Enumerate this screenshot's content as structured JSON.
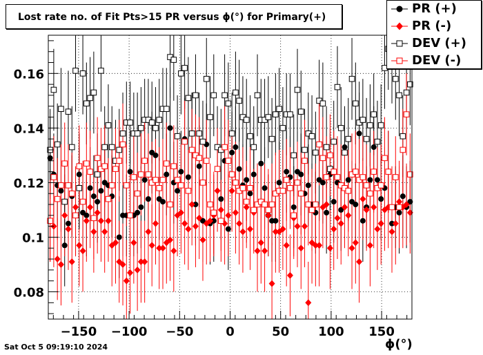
{
  "chart_data": {
    "type": "scatter",
    "title": "Lost rate no. of Fit Pts>15 PR versus ϕ(°) for Primary(+)",
    "xlabel": "ϕ(°)",
    "ylabel": "",
    "xlim": [
      -180,
      180
    ],
    "ylim": [
      0.07,
      0.174
    ],
    "grid": true,
    "legend_position": "top-right",
    "x_ticks": [
      "−150",
      "−100",
      "−50",
      "0",
      "50",
      "100",
      "150"
    ],
    "x_tick_values": [
      -150,
      -100,
      -50,
      0,
      50,
      100,
      150
    ],
    "y_ticks": [
      "0.08",
      "0.1",
      "0.12",
      "0.14",
      "0.16"
    ],
    "y_tick_values": [
      0.08,
      0.1,
      0.12,
      0.14,
      0.16
    ],
    "x": [
      -178.2,
      -174.6,
      -171.0,
      -167.4,
      -163.8,
      -160.2,
      -156.6,
      -153.0,
      -149.4,
      -145.8,
      -142.2,
      -138.6,
      -135.0,
      -131.4,
      -127.8,
      -124.2,
      -120.6,
      -117.0,
      -113.4,
      -109.8,
      -106.2,
      -102.6,
      -99.0,
      -95.4,
      -91.8,
      -88.2,
      -84.6,
      -81.0,
      -77.4,
      -73.8,
      -70.2,
      -66.6,
      -63.0,
      -59.4,
      -55.8,
      -52.2,
      -48.6,
      -45.0,
      -41.4,
      -37.8,
      -34.2,
      -30.6,
      -27.0,
      -23.4,
      -19.8,
      -16.2,
      -12.6,
      -9.0,
      -5.4,
      -1.8,
      1.8,
      5.4,
      9.0,
      12.6,
      16.2,
      19.8,
      23.4,
      27.0,
      30.6,
      34.2,
      37.8,
      41.4,
      45.0,
      48.6,
      52.2,
      55.8,
      59.4,
      63.0,
      66.6,
      70.2,
      73.8,
      77.4,
      81.0,
      84.6,
      88.2,
      91.8,
      95.4,
      99.0,
      102.6,
      106.2,
      109.8,
      113.4,
      117.0,
      120.6,
      124.2,
      127.8,
      131.4,
      135.0,
      138.6,
      142.2,
      145.8,
      149.4,
      153.0,
      156.6,
      160.2,
      163.8,
      167.4,
      171.0,
      174.6,
      178.2
    ],
    "series": [
      {
        "name": "PR (+)",
        "marker": "filled-circle",
        "color": "#000000",
        "values": [
          0.129,
          0.123,
          0.119,
          0.117,
          0.097,
          0.105,
          0.115,
          0.108,
          0.123,
          0.109,
          0.108,
          0.118,
          0.115,
          0.113,
          0.117,
          0.12,
          0.119,
          0.115,
          0.128,
          0.1,
          0.108,
          0.108,
          0.124,
          0.108,
          0.109,
          0.111,
          0.121,
          0.114,
          0.131,
          0.13,
          0.114,
          0.113,
          0.123,
          0.14,
          0.12,
          0.117,
          0.124,
          0.136,
          0.122,
          0.138,
          0.112,
          0.126,
          0.106,
          0.134,
          0.105,
          0.106,
          0.125,
          0.114,
          0.128,
          0.103,
          0.131,
          0.133,
          0.125,
          0.119,
          0.121,
          0.116,
          0.123,
          0.112,
          0.127,
          0.118,
          0.108,
          0.106,
          0.106,
          0.12,
          0.117,
          0.124,
          0.122,
          0.111,
          0.124,
          0.123,
          0.116,
          0.119,
          0.112,
          0.109,
          0.121,
          0.12,
          0.109,
          0.123,
          0.113,
          0.12,
          0.11,
          0.133,
          0.121,
          0.113,
          0.112,
          0.138,
          0.106,
          0.111,
          0.121,
          0.133,
          0.121,
          0.114,
          0.118,
          0.124,
          0.105,
          0.111,
          0.109,
          0.115,
          0.111,
          0.113
        ]
      },
      {
        "name": "PR (-)",
        "marker": "filled-diamond",
        "color": "#ff0000",
        "values": [
          0.106,
          0.104,
          0.092,
          0.09,
          0.108,
          0.103,
          0.091,
          0.111,
          0.097,
          0.095,
          0.106,
          0.111,
          0.102,
          0.109,
          0.106,
          0.102,
          0.106,
          0.097,
          0.098,
          0.091,
          0.09,
          0.084,
          0.087,
          0.098,
          0.088,
          0.091,
          0.091,
          0.102,
          0.097,
          0.105,
          0.096,
          0.096,
          0.098,
          0.099,
          0.095,
          0.108,
          0.109,
          0.105,
          0.103,
          0.112,
          0.104,
          0.107,
          0.099,
          0.105,
          0.106,
          0.108,
          0.117,
          0.11,
          0.105,
          0.108,
          0.117,
          0.109,
          0.105,
          0.102,
          0.111,
          0.103,
          0.109,
          0.095,
          0.098,
          0.095,
          0.108,
          0.083,
          0.102,
          0.102,
          0.103,
          0.097,
          0.086,
          0.107,
          0.104,
          0.096,
          0.104,
          0.076,
          0.098,
          0.097,
          0.097,
          0.111,
          0.112,
          0.096,
          0.103,
          0.107,
          0.105,
          0.111,
          0.108,
          0.096,
          0.098,
          0.091,
          0.114,
          0.11,
          0.097,
          0.111,
          0.103,
          0.105,
          0.11,
          0.111,
          0.102,
          0.105,
          0.113,
          0.111,
          0.112,
          0.109
        ]
      },
      {
        "name": "DEV (+)",
        "marker": "open-square",
        "color": "#000000",
        "values": [
          0.132,
          0.154,
          0.134,
          0.147,
          0.113,
          0.146,
          0.133,
          0.161,
          0.118,
          0.16,
          0.149,
          0.151,
          0.153,
          0.123,
          0.161,
          0.133,
          0.141,
          0.133,
          0.128,
          0.132,
          0.138,
          0.142,
          0.142,
          0.138,
          0.138,
          0.14,
          0.143,
          0.143,
          0.142,
          0.14,
          0.143,
          0.147,
          0.147,
          0.166,
          0.165,
          0.137,
          0.16,
          0.162,
          0.151,
          0.138,
          0.152,
          0.138,
          0.135,
          0.158,
          0.144,
          0.152,
          0.133,
          0.132,
          0.152,
          0.149,
          0.138,
          0.153,
          0.15,
          0.144,
          0.143,
          0.137,
          0.133,
          0.152,
          0.143,
          0.143,
          0.144,
          0.136,
          0.145,
          0.147,
          0.14,
          0.145,
          0.145,
          0.13,
          0.154,
          0.146,
          0.132,
          0.138,
          0.137,
          0.131,
          0.15,
          0.149,
          0.133,
          0.125,
          0.135,
          0.155,
          0.14,
          0.131,
          0.136,
          0.158,
          0.149,
          0.142,
          0.143,
          0.136,
          0.141,
          0.145,
          0.135,
          0.141,
          0.162,
          0.169,
          0.164,
          0.158,
          0.152,
          0.137,
          0.153,
          0.156
        ]
      },
      {
        "name": "DEV (-)",
        "marker": "open-square",
        "color": "#ff0000",
        "values": [
          0.106,
          0.122,
          0.114,
          0.119,
          0.127,
          0.119,
          0.116,
          0.108,
          0.126,
          0.113,
          0.127,
          0.124,
          0.107,
          0.129,
          0.125,
          0.126,
          0.114,
          0.119,
          0.125,
          0.128,
          0.134,
          0.119,
          0.108,
          0.122,
          0.116,
          0.123,
          0.128,
          0.123,
          0.12,
          0.121,
          0.118,
          0.121,
          0.127,
          0.112,
          0.126,
          0.121,
          0.119,
          0.135,
          0.117,
          0.132,
          0.13,
          0.129,
          0.12,
          0.128,
          0.112,
          0.109,
          0.125,
          0.106,
          0.133,
          0.128,
          0.123,
          0.12,
          0.117,
          0.118,
          0.113,
          0.118,
          0.11,
          0.112,
          0.113,
          0.112,
          0.11,
          0.112,
          0.116,
          0.117,
          0.117,
          0.121,
          0.118,
          0.108,
          0.12,
          0.116,
          0.128,
          0.112,
          0.11,
          0.112,
          0.134,
          0.129,
          0.122,
          0.13,
          0.124,
          0.122,
          0.119,
          0.118,
          0.117,
          0.123,
          0.124,
          0.121,
          0.122,
          0.119,
          0.116,
          0.124,
          0.118,
          0.119,
          0.129,
          0.124,
          0.111,
          0.122,
          0.111,
          0.132,
          0.145,
          0.123
        ]
      }
    ],
    "error_bar_half_width": 0.015
  },
  "timestamp": "Sat Oct  5 09:19:10 2024"
}
